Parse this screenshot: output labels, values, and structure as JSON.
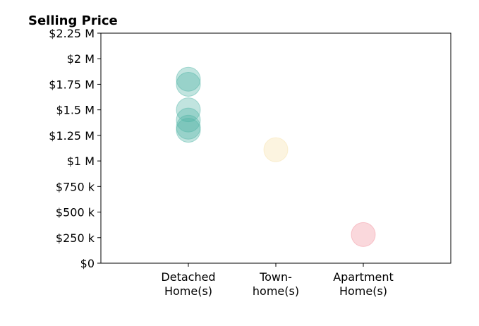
{
  "chart_data": {
    "type": "scatter",
    "title": "Selling Price",
    "xlabel": "",
    "ylabel": "",
    "categories": [
      [
        "Detached",
        "Home(s)"
      ],
      [
        "Town-",
        "home(s)"
      ],
      [
        "Apartment",
        "Home(s)"
      ]
    ],
    "y_ticks": [
      {
        "value": 0,
        "label": "$0"
      },
      {
        "value": 250000,
        "label": "$250 k"
      },
      {
        "value": 500000,
        "label": "$500 k"
      },
      {
        "value": 750000,
        "label": "$750 k"
      },
      {
        "value": 1000000,
        "label": "$1 M"
      },
      {
        "value": 1250000,
        "label": "$1.25 M"
      },
      {
        "value": 1500000,
        "label": "$1.5 M"
      },
      {
        "value": 1750000,
        "label": "$1.75 M"
      },
      {
        "value": 2000000,
        "label": "$2 M"
      },
      {
        "value": 2250000,
        "label": "$2.25 M"
      }
    ],
    "ylim": [
      0,
      2250000
    ],
    "grid": false,
    "series": [
      {
        "category": 0,
        "color": "#4cb3a3",
        "values": [
          1800000,
          1750000,
          1500000,
          1400000,
          1330000,
          1300000
        ]
      },
      {
        "category": 1,
        "color": "#f6dfa6",
        "values": [
          1110000
        ]
      },
      {
        "category": 2,
        "color": "#f28e9b",
        "values": [
          280000
        ]
      }
    ]
  }
}
